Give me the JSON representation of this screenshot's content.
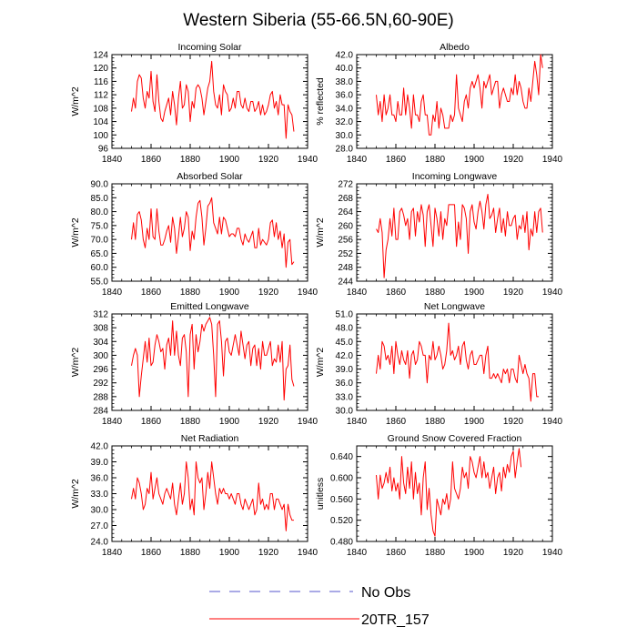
{
  "figure": {
    "title": "Western Siberia (55-66.5N,60-90E)",
    "legend": [
      {
        "label": "No Obs",
        "color": "#5555cc",
        "dashed": true
      },
      {
        "label": "20TR_157",
        "color": "#ff0000",
        "dashed": false
      }
    ]
  },
  "chart_data": [
    {
      "type": "line",
      "title": "Incoming Solar",
      "ylabel": "W/m^2",
      "xlim": [
        1840,
        1940
      ],
      "xticks": [
        1840,
        1860,
        1880,
        1900,
        1920,
        1940
      ],
      "ylim": [
        96,
        124
      ],
      "yticks": [
        96,
        100,
        104,
        108,
        112,
        116,
        120,
        124
      ],
      "ydecimals": 0,
      "x_start": 1850,
      "series": [
        {
          "name": "20TR_157",
          "values": [
            107,
            111,
            108,
            116,
            118,
            117,
            111,
            108,
            113,
            111,
            119,
            110,
            107,
            118,
            110,
            105,
            104,
            107,
            109,
            111,
            106,
            113,
            109,
            103,
            111,
            116,
            108,
            109,
            115,
            113,
            104,
            110,
            108,
            114,
            115,
            114,
            111,
            106,
            110,
            114,
            116,
            122,
            113,
            109,
            108,
            112,
            106,
            115,
            113,
            112,
            107,
            108,
            111,
            108,
            113,
            113,
            109,
            108,
            111,
            108,
            107,
            110,
            110,
            107,
            108,
            110,
            106,
            109,
            106,
            107,
            109,
            112,
            113,
            108,
            110,
            106,
            112,
            109,
            109,
            99,
            109,
            107,
            106,
            101
          ]
        }
      ]
    },
    {
      "type": "line",
      "title": "Albedo",
      "ylabel": "% reflected",
      "xlim": [
        1840,
        1940
      ],
      "xticks": [
        1840,
        1860,
        1880,
        1900,
        1920,
        1940
      ],
      "ylim": [
        28,
        42
      ],
      "yticks": [
        28.0,
        30.0,
        32.0,
        34.0,
        36.0,
        38.0,
        40.0,
        42.0
      ],
      "ydecimals": 1,
      "x_start": 1850,
      "series": [
        {
          "name": "20TR_157",
          "values": [
            36,
            33,
            35,
            32,
            36,
            33,
            34,
            36,
            33,
            33,
            32,
            35,
            33,
            33,
            37,
            33,
            36,
            34,
            31,
            36,
            33,
            33,
            32,
            35,
            36,
            33,
            33,
            30,
            30,
            33,
            32,
            35,
            31,
            34,
            33,
            31,
            31,
            31,
            33,
            32,
            33,
            39,
            34,
            33,
            32,
            35,
            36,
            34,
            37,
            38,
            37,
            38,
            39,
            37,
            34,
            38,
            37,
            38,
            39,
            36,
            37,
            38,
            38,
            34,
            36,
            37,
            36,
            35,
            35,
            37,
            36,
            39,
            36,
            38,
            37,
            35,
            34,
            34,
            37,
            35,
            38,
            41,
            39,
            36,
            42,
            40
          ]
        }
      ]
    },
    {
      "type": "line",
      "title": "Absorbed Solar",
      "ylabel": "W/m^2",
      "xlim": [
        1840,
        1940
      ],
      "xticks": [
        1840,
        1860,
        1880,
        1900,
        1920,
        1940
      ],
      "ylim": [
        55,
        90
      ],
      "yticks": [
        55.0,
        60.0,
        65.0,
        70.0,
        75.0,
        80.0,
        85.0,
        90.0
      ],
      "ydecimals": 1,
      "x_start": 1850,
      "series": [
        {
          "name": "20TR_157",
          "values": [
            70,
            76,
            70,
            79,
            80,
            77,
            70,
            67,
            74,
            70,
            81,
            71,
            70,
            81,
            73,
            68,
            68,
            70,
            73,
            75,
            69,
            78,
            74,
            65,
            71,
            78,
            71,
            74,
            80,
            78,
            66,
            73,
            70,
            78,
            83,
            84,
            78,
            68,
            74,
            82,
            83,
            85,
            76,
            74,
            72,
            78,
            72,
            78,
            77,
            74,
            71,
            72,
            72,
            71,
            74,
            74,
            70,
            68,
            72,
            70,
            69,
            71,
            73,
            67,
            67,
            74,
            68,
            70,
            69,
            68,
            70,
            76,
            77,
            71,
            76,
            70,
            73,
            67,
            72,
            60,
            69,
            70,
            61,
            62
          ]
        }
      ]
    },
    {
      "type": "line",
      "title": "Incoming Longwave",
      "ylabel": "W/m^2",
      "xlim": [
        1840,
        1940
      ],
      "xticks": [
        1840,
        1860,
        1880,
        1900,
        1920,
        1940
      ],
      "ylim": [
        244,
        272
      ],
      "yticks": [
        244,
        248,
        252,
        256,
        260,
        264,
        268,
        272
      ],
      "ydecimals": 0,
      "x_start": 1850,
      "series": [
        {
          "name": "20TR_157",
          "values": [
            259,
            258,
            262,
            258,
            245,
            253,
            256,
            262,
            257,
            265,
            256,
            256,
            264,
            265,
            263,
            260,
            262,
            256,
            264,
            265,
            257,
            264,
            261,
            266,
            263,
            254,
            264,
            266,
            260,
            254,
            265,
            262,
            257,
            264,
            256,
            262,
            260,
            266,
            266,
            266,
            266,
            254,
            261,
            256,
            266,
            265,
            262,
            252,
            264,
            266,
            261,
            259,
            264,
            267,
            264,
            259,
            266,
            269,
            262,
            263,
            265,
            258,
            262,
            265,
            258,
            262,
            257,
            264,
            260,
            260,
            262,
            263,
            256,
            260,
            259,
            263,
            258,
            264,
            253,
            259,
            257,
            264,
            258,
            264,
            265,
            258
          ]
        }
      ]
    },
    {
      "type": "line",
      "title": "Emitted Longwave",
      "ylabel": "W/m^2",
      "xlim": [
        1840,
        1940
      ],
      "xticks": [
        1840,
        1860,
        1880,
        1900,
        1920,
        1940
      ],
      "ylim": [
        284,
        312
      ],
      "yticks": [
        284,
        288,
        292,
        296,
        300,
        304,
        308,
        312
      ],
      "ydecimals": 0,
      "x_start": 1850,
      "series": [
        {
          "name": "20TR_157",
          "values": [
            297,
            300,
            302,
            300,
            288,
            294,
            299,
            304,
            298,
            305,
            297,
            298,
            303,
            306,
            304,
            301,
            302,
            296,
            303,
            305,
            300,
            310,
            300,
            307,
            300,
            297,
            305,
            306,
            301,
            288,
            306,
            309,
            296,
            306,
            301,
            304,
            309,
            307,
            309,
            310,
            311,
            309,
            300,
            288,
            309,
            310,
            304,
            294,
            304,
            305,
            301,
            300,
            303,
            306,
            303,
            300,
            307,
            303,
            299,
            303,
            304,
            297,
            302,
            303,
            297,
            302,
            296,
            304,
            300,
            300,
            302,
            304,
            297,
            299,
            298,
            303,
            298,
            304,
            287,
            296,
            297,
            303,
            293,
            291
          ]
        }
      ]
    },
    {
      "type": "line",
      "title": "Net Longwave",
      "ylabel": "W/m^2",
      "xlim": [
        1840,
        1940
      ],
      "xticks": [
        1840,
        1860,
        1880,
        1900,
        1920,
        1940
      ],
      "ylim": [
        30,
        51
      ],
      "yticks": [
        30.0,
        33.0,
        36.0,
        39.0,
        42.0,
        45.0,
        48.0,
        51.0
      ],
      "ydecimals": 1,
      "x_start": 1850,
      "series": [
        {
          "name": "20TR_157",
          "values": [
            38,
            42,
            39,
            45,
            44,
            41,
            42,
            40,
            44,
            38,
            45,
            42,
            40,
            43,
            41,
            40,
            43,
            37,
            42,
            43,
            40,
            41,
            45,
            44,
            42,
            42,
            36,
            42,
            41,
            45,
            41,
            42,
            44,
            42,
            39,
            40,
            43,
            49,
            42,
            43,
            41,
            42,
            44,
            40,
            44,
            45,
            41,
            39,
            42,
            43,
            40,
            40,
            41,
            42,
            42,
            38,
            42,
            44,
            37,
            37,
            38,
            37,
            38,
            37,
            36,
            39,
            38,
            39,
            36,
            39,
            39,
            37,
            36,
            42,
            40,
            38,
            40,
            38,
            37,
            32,
            38,
            38,
            33,
            33
          ]
        }
      ]
    },
    {
      "type": "line",
      "title": "Net Radiation",
      "ylabel": "W/m^2",
      "xlim": [
        1840,
        1940
      ],
      "xticks": [
        1840,
        1860,
        1880,
        1900,
        1920,
        1940
      ],
      "ylim": [
        24,
        42
      ],
      "yticks": [
        24.0,
        27.0,
        30.0,
        33.0,
        36.0,
        39.0,
        42.0
      ],
      "ydecimals": 1,
      "x_start": 1850,
      "series": [
        {
          "name": "20TR_157",
          "values": [
            32,
            34,
            32,
            36,
            35,
            33,
            30,
            31,
            34,
            33,
            37,
            32,
            34,
            36,
            33,
            32,
            31,
            33,
            34,
            33,
            32,
            35,
            31,
            29,
            32,
            35,
            31,
            33,
            39,
            36,
            30,
            32,
            29,
            39,
            36,
            35,
            36,
            30,
            33,
            37,
            34,
            39,
            36,
            33,
            31,
            34,
            33,
            34,
            33,
            33,
            32,
            33,
            32,
            31,
            33,
            33,
            31,
            30,
            32,
            31,
            30,
            31,
            32,
            29,
            30,
            35,
            31,
            32,
            30,
            31,
            30,
            33,
            33,
            30,
            32,
            32,
            31,
            30,
            31,
            26,
            31,
            29,
            28,
            28
          ]
        }
      ]
    },
    {
      "type": "line",
      "title": "Ground Snow Covered Fraction",
      "ylabel": "unitless",
      "xlim": [
        1840,
        1940
      ],
      "xticks": [
        1840,
        1860,
        1880,
        1900,
        1920,
        1940
      ],
      "ylim": [
        0.48,
        0.66
      ],
      "yticks": [
        0.48,
        0.52,
        0.56,
        0.6,
        0.64
      ],
      "ydecimals": 3,
      "x_start": 1850,
      "series": [
        {
          "name": "20TR_157",
          "values": [
            0.605,
            0.56,
            0.605,
            0.58,
            0.59,
            0.61,
            0.59,
            0.62,
            0.575,
            0.6,
            0.575,
            0.59,
            0.56,
            0.64,
            0.59,
            0.57,
            0.62,
            0.58,
            0.63,
            0.56,
            0.61,
            0.57,
            0.59,
            0.53,
            0.6,
            0.63,
            0.54,
            0.58,
            0.53,
            0.5,
            0.49,
            0.56,
            0.545,
            0.53,
            0.56,
            0.55,
            0.57,
            0.54,
            0.56,
            0.63,
            0.58,
            0.57,
            0.56,
            0.58,
            0.62,
            0.6,
            0.61,
            0.58,
            0.64,
            0.63,
            0.61,
            0.6,
            0.62,
            0.64,
            0.6,
            0.63,
            0.6,
            0.61,
            0.58,
            0.6,
            0.62,
            0.57,
            0.6,
            0.61,
            0.575,
            0.62,
            0.6,
            0.625,
            0.61,
            0.64,
            0.65,
            0.6,
            0.63,
            0.655,
            0.62
          ]
        }
      ]
    }
  ]
}
